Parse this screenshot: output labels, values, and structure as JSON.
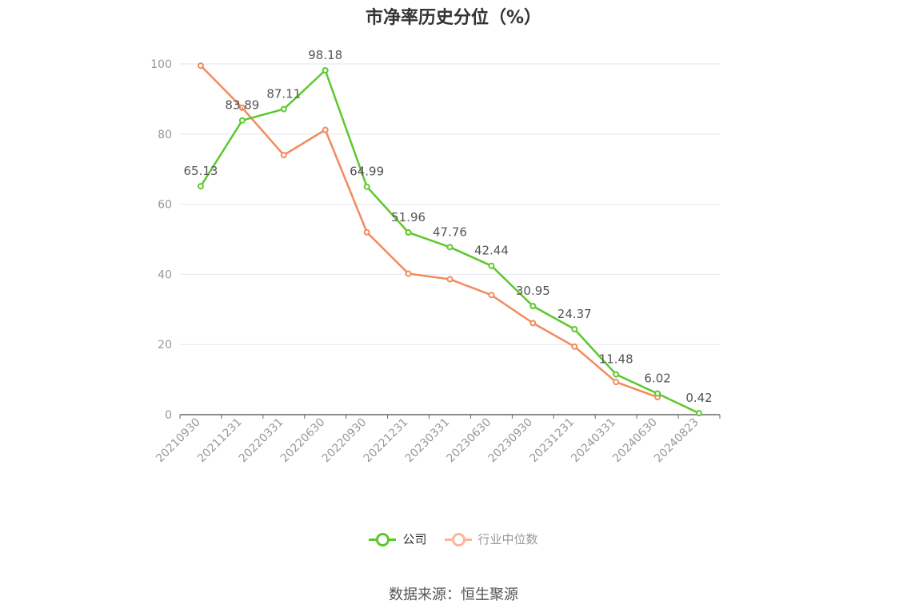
{
  "title": "市净率历史分位（%）",
  "source": "数据来源：恒生聚源",
  "chart_data": {
    "type": "line",
    "categories": [
      "20210930",
      "20211231",
      "20220331",
      "20220630",
      "20220930",
      "20221231",
      "20230331",
      "20230630",
      "20230930",
      "20231231",
      "20240331",
      "20240630",
      "20240823"
    ],
    "ylim": [
      0,
      100
    ],
    "yticks": [
      0,
      20,
      40,
      60,
      80,
      100
    ],
    "grid": true,
    "legend_position": "bottom",
    "series": [
      {
        "name": "公司",
        "color": "#5dc82c",
        "show_labels": true,
        "values": [
          65.13,
          83.89,
          87.11,
          98.18,
          64.99,
          51.96,
          47.76,
          42.44,
          30.95,
          24.37,
          11.48,
          6.02,
          0.42
        ]
      },
      {
        "name": "行业中位数",
        "color": "#f38a5c",
        "legend_color": "#f8b79b",
        "show_labels": false,
        "values": [
          99.5,
          87.5,
          74.0,
          81.2,
          52.0,
          40.2,
          38.6,
          34.1,
          26.1,
          19.4,
          9.3,
          5.0,
          null
        ]
      }
    ]
  }
}
